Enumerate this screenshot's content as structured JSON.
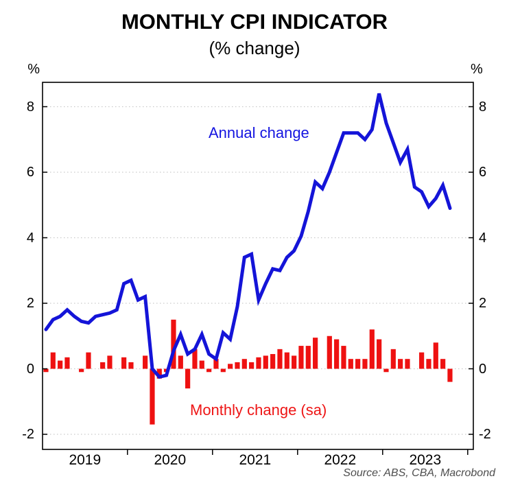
{
  "title": "MONTHLY CPI INDICATOR",
  "subtitle": "(% change)",
  "source": "Source: ABS, CBA, Macrobond",
  "legend": {
    "line": "Annual change",
    "bars": "Monthly change (sa)"
  },
  "axis": {
    "left_unit": "%",
    "right_unit": "%",
    "y_tick_labels": [
      "8",
      "6",
      "4",
      "2",
      "0",
      "-2"
    ],
    "y_tick_values": [
      8,
      6,
      4,
      2,
      0,
      -2
    ],
    "x_year_labels": [
      "2019",
      "2020",
      "2021",
      "2022",
      "2023"
    ]
  },
  "colors": {
    "line": "#1414d8",
    "bars": "#ee1111",
    "grid": "#c9c9c9",
    "axis": "#000000",
    "legend_line_text": "#1414e0",
    "legend_bars_text": "#ee1515",
    "source_text": "#4d4d4d"
  },
  "chart_data": {
    "type": "mixed-line-bar",
    "title": "MONTHLY CPI INDICATOR",
    "subtitle": "(% change)",
    "x_frequency": "monthly",
    "x_start": "2019-01",
    "x_end": "2023-10",
    "ylim": [
      -2.45,
      8.7
    ],
    "y_ticks": [
      8,
      6,
      4,
      2,
      0,
      -2
    ],
    "grid": "horizontal-dotted",
    "legend_position": "annotations-inside-plot",
    "x": [
      "2019-01",
      "2019-02",
      "2019-03",
      "2019-04",
      "2019-05",
      "2019-06",
      "2019-07",
      "2019-08",
      "2019-09",
      "2019-10",
      "2019-11",
      "2019-12",
      "2020-01",
      "2020-02",
      "2020-03",
      "2020-04",
      "2020-05",
      "2020-06",
      "2020-07",
      "2020-08",
      "2020-09",
      "2020-10",
      "2020-11",
      "2020-12",
      "2021-01",
      "2021-02",
      "2021-03",
      "2021-04",
      "2021-05",
      "2021-06",
      "2021-07",
      "2021-08",
      "2021-09",
      "2021-10",
      "2021-11",
      "2021-12",
      "2022-01",
      "2022-02",
      "2022-03",
      "2022-04",
      "2022-05",
      "2022-06",
      "2022-07",
      "2022-08",
      "2022-09",
      "2022-10",
      "2022-11",
      "2022-12",
      "2023-01",
      "2023-02",
      "2023-03",
      "2023-04",
      "2023-05",
      "2023-06",
      "2023-07",
      "2023-08",
      "2023-09",
      "2023-10"
    ],
    "series": [
      {
        "name": "Annual change",
        "type": "line",
        "color": "#1414d8",
        "values": [
          1.2,
          1.5,
          1.6,
          1.8,
          1.6,
          1.45,
          1.4,
          1.6,
          1.65,
          1.7,
          1.8,
          2.6,
          2.7,
          2.1,
          2.2,
          0.0,
          -0.25,
          -0.2,
          0.55,
          1.05,
          0.45,
          0.6,
          1.05,
          0.45,
          0.3,
          1.1,
          0.9,
          1.9,
          3.4,
          3.5,
          2.1,
          2.6,
          3.05,
          3.0,
          3.4,
          3.6,
          4.05,
          4.8,
          5.7,
          5.5,
          6.0,
          6.6,
          7.2,
          7.2,
          7.2,
          7.0,
          7.3,
          8.4,
          7.5,
          6.9,
          6.3,
          6.7,
          5.55,
          5.4,
          4.95,
          5.2,
          5.6,
          4.9
        ]
      },
      {
        "name": "Monthly change (sa)",
        "type": "bar",
        "color": "#ee1111",
        "values": [
          -0.1,
          0.5,
          0.25,
          0.35,
          0.0,
          -0.1,
          0.5,
          0.0,
          0.2,
          0.4,
          0.0,
          0.35,
          0.2,
          0.0,
          0.4,
          -1.7,
          -0.3,
          -0.1,
          1.5,
          0.4,
          -0.6,
          0.6,
          0.25,
          -0.1,
          0.3,
          -0.1,
          0.15,
          0.2,
          0.3,
          0.2,
          0.35,
          0.4,
          0.45,
          0.6,
          0.5,
          0.4,
          0.7,
          0.7,
          0.95,
          0.0,
          1.0,
          0.9,
          0.7,
          0.3,
          0.3,
          0.3,
          1.2,
          0.9,
          -0.1,
          0.6,
          0.3,
          0.3,
          0.0,
          0.5,
          0.3,
          0.8,
          0.3,
          -0.4
        ]
      }
    ]
  }
}
